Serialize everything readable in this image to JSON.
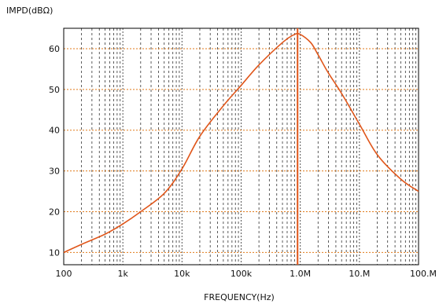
{
  "chart_data": {
    "type": "line",
    "xscale": "log",
    "xlabel": "FREQUENCY(Hz)",
    "ylabel": "IMPD(dBΩ)",
    "xlim": [
      100,
      100000000
    ],
    "ylim": [
      7,
      65
    ],
    "grid": true,
    "x_ticks": [
      {
        "value": 100,
        "label": "100"
      },
      {
        "value": 1000,
        "label": "1k"
      },
      {
        "value": 10000,
        "label": "10k"
      },
      {
        "value": 100000,
        "label": "100k"
      },
      {
        "value": 1000000,
        "label": "1.0M"
      },
      {
        "value": 10000000,
        "label": "10.M"
      },
      {
        "value": 100000000,
        "label": "100.M"
      }
    ],
    "y_ticks": [
      {
        "value": 10,
        "label": "10"
      },
      {
        "value": 20,
        "label": "20"
      },
      {
        "value": 30,
        "label": "30"
      },
      {
        "value": 40,
        "label": "40"
      },
      {
        "value": 50,
        "label": "50"
      },
      {
        "value": 60,
        "label": "60"
      }
    ],
    "marker_x": 900000,
    "series": [
      {
        "color": "#e0561a",
        "x": [
          100,
          200,
          500,
          1000,
          2000,
          5000,
          10000,
          20000,
          50000,
          100000,
          200000,
          500000,
          800000,
          1000000,
          1500000,
          2000000,
          3000000,
          5000000,
          10000000,
          20000000,
          50000000,
          100000000
        ],
        "y": [
          10,
          12,
          14.5,
          17,
          20,
          24.5,
          30.5,
          38.5,
          46,
          51,
          56,
          61.5,
          63.5,
          63.5,
          61.5,
          58.5,
          54,
          49,
          41.5,
          34,
          28,
          25
        ]
      }
    ]
  }
}
